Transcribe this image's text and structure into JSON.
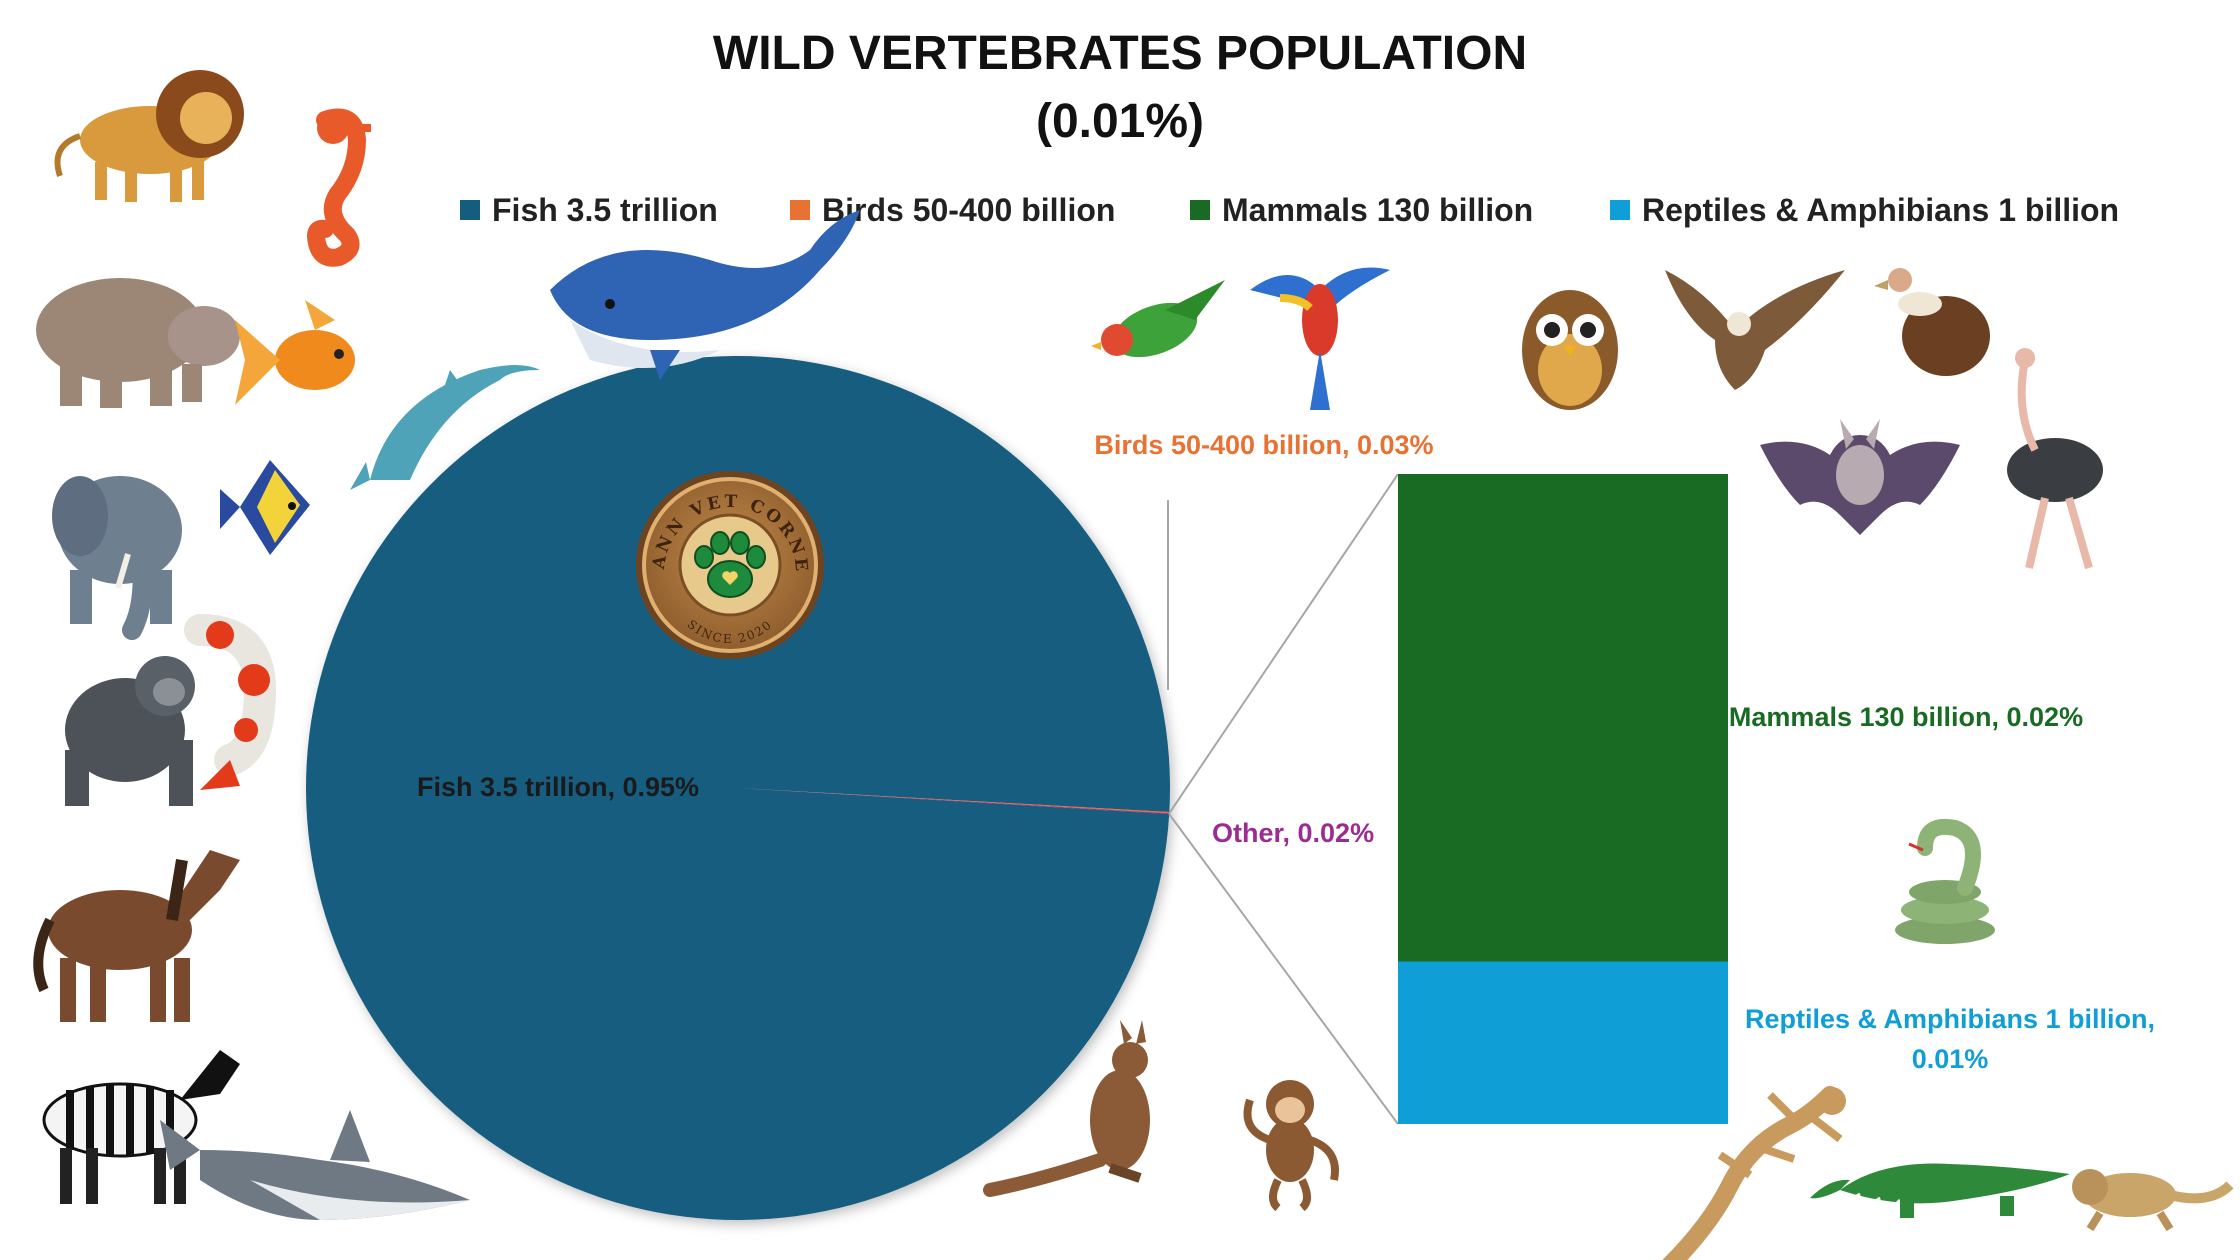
{
  "title_line1": "WILD VERTEBRATES POPULATION",
  "title_line2": "(0.01%)",
  "logo": {
    "top_text": "MANN VET CORNER",
    "bottom_text": "SINCE 2020"
  },
  "colors": {
    "fish": "#155d7f",
    "birds": "#e97132",
    "other": "#9b2c93",
    "mammals": "#196b24",
    "reptiles": "#0f9ed5"
  },
  "chart_data": {
    "type": "pie",
    "subtype": "bar-of-pie",
    "title": "WILD VERTEBRATES POPULATION (0.01%)",
    "legend_position": "top",
    "legend": [
      {
        "label": "Fish 3.5 trillion",
        "color": "#155d7f"
      },
      {
        "label": "Birds 50-400 billion",
        "color": "#e97132"
      },
      {
        "label": "Mammals 130 billion",
        "color": "#196b24"
      },
      {
        "label": "Reptiles & Amphibians 1 billion",
        "color": "#0f9ed5"
      }
    ],
    "pie": [
      {
        "name": "Fish 3.5 trillion",
        "value": 0.95,
        "label": "Fish 3.5 trillion, 0.95%",
        "color": "#155d7f"
      },
      {
        "name": "Birds 50-400 billion",
        "value": 0.03,
        "label": "Birds 50-400 billion, 0.03%",
        "color": "#e97132"
      },
      {
        "name": "Other",
        "value": 0.02,
        "label": "Other, 0.02%",
        "color": "#9b2c93"
      }
    ],
    "bar": [
      {
        "name": "Mammals 130 billion",
        "value": 0.02,
        "label": "Mammals 130 billion, 0.02%",
        "color": "#196b24"
      },
      {
        "name": "Reptiles & Amphibians 1 billion",
        "value": 0.01,
        "label_line1": "Reptiles & Amphibians  1 billion,",
        "label_line2": "0.01%",
        "color": "#0f9ed5"
      }
    ],
    "value_unit": "%"
  },
  "clipart": [
    "lion",
    "seahorse",
    "hippo",
    "goldfish",
    "elephant",
    "angelfish",
    "koi-fish",
    "gorilla",
    "horse",
    "zebra",
    "shark",
    "whale",
    "dolphin",
    "lovebird",
    "macaw",
    "owl",
    "eagle",
    "vulture",
    "bat",
    "ostrich",
    "snake",
    "kangaroo",
    "monkey",
    "gecko",
    "crocodile",
    "bearded-dragon"
  ]
}
